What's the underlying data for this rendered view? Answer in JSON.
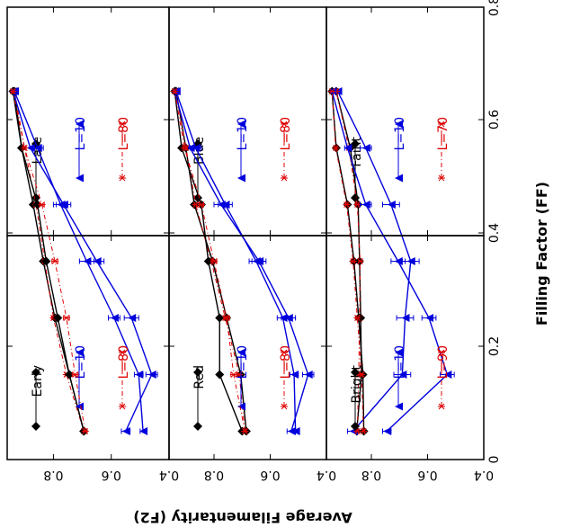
{
  "figure": {
    "xlabel": "Filling Factor (FF)",
    "ylabel": "Average Filamentarity (F2)",
    "xticks": [
      "0",
      "0.2",
      "0.4",
      "0.6",
      "0.8"
    ],
    "yticks": [
      "0.4",
      "0.6",
      "0.8"
    ]
  },
  "colors": {
    "black": "#000000",
    "blue": "#0000dd",
    "red": "#dd0000"
  },
  "chart_data": [
    {
      "type": "line",
      "panel": "Faint",
      "xlim": [
        0,
        0.8
      ],
      "ylim": [
        0.4,
        0.96
      ],
      "series": [
        {
          "name": "Faint",
          "marker": "diamond",
          "color": "#000000",
          "x": [
            0.05,
            0.15,
            0.25,
            0.35,
            0.45,
            0.55,
            0.65
          ],
          "y": [
            0.852,
            0.835,
            0.838,
            0.842,
            0.847,
            0.875,
            0.925
          ],
          "err": [
            0.003,
            0.003,
            0.003,
            0.004,
            0.004,
            0.005,
            0.004
          ]
        },
        {
          "name": "L=10",
          "marker": "triangle",
          "color": "#0000dd",
          "x": [
            0.05,
            0.15,
            0.25,
            0.35,
            0.45,
            0.55,
            0.65
          ],
          "y": [
            0.865,
            0.69,
            0.68,
            0.66,
            0.73,
            0.82,
            0.92
          ],
          "err": [
            0.02,
            0.03,
            0.03,
            0.03,
            0.03,
            0.02,
            0.01
          ]
        },
        {
          "name": "L=70",
          "marker": "asterisk",
          "color": "#dd0000",
          "x": [
            0.05,
            0.15,
            0.25,
            0.35,
            0.45,
            0.55,
            0.65
          ],
          "y": [
            0.85,
            0.845,
            0.842,
            0.84,
            0.85,
            0.88,
            0.925
          ],
          "err": [
            0.004,
            0.005,
            0.005,
            0.005,
            0.005,
            0.004,
            0.003
          ]
        }
      ]
    },
    {
      "type": "line",
      "panel": "Bright",
      "xlim": [
        0,
        0.8
      ],
      "ylim": [
        0.4,
        0.96
      ],
      "series": [
        {
          "name": "Bright",
          "marker": "diamond",
          "color": "#000000",
          "x": [
            0.05,
            0.15,
            0.25,
            0.35,
            0.45,
            0.55,
            0.65
          ],
          "y": [
            0.827,
            0.83,
            0.845,
            0.862,
            0.885,
            0.925,
            0.94
          ],
          "err": [
            0.004,
            0.004,
            0.004,
            0.004,
            0.004,
            0.003,
            0.002
          ]
        },
        {
          "name": "L=10",
          "marker": "triangle",
          "color": "#0000dd",
          "x": [
            0.05,
            0.15,
            0.25,
            0.35,
            0.45,
            0.55,
            0.65
          ],
          "y": [
            0.745,
            0.53,
            0.595,
            0.705,
            0.82,
            0.885,
            0.94
          ],
          "err": [
            0.015,
            0.025,
            0.025,
            0.025,
            0.02,
            0.01,
            0.003
          ]
        },
        {
          "name": "L=90",
          "marker": "asterisk",
          "color": "#dd0000",
          "x": [
            0.05,
            0.15,
            0.25,
            0.35,
            0.45,
            0.55,
            0.65
          ],
          "y": [
            0.828,
            0.835,
            0.85,
            0.865,
            0.888,
            0.927,
            0.94
          ],
          "err": [
            0.004,
            0.005,
            0.005,
            0.005,
            0.004,
            0.003,
            0.002
          ]
        }
      ]
    },
    {
      "type": "line",
      "panel": "Blue",
      "xlim": [
        0,
        0.8
      ],
      "ylim": [
        0.4,
        0.96
      ],
      "series": [
        {
          "name": "Blue",
          "marker": "diamond",
          "color": "#000000",
          "x": [
            0.05,
            0.15,
            0.25,
            0.35,
            0.45,
            0.55,
            0.65
          ],
          "y": [
            0.685,
            0.705,
            0.755,
            0.805,
            0.87,
            0.9,
            0.935
          ],
          "err": [
            0.004,
            0.004,
            0.004,
            0.004,
            0.004,
            0.003,
            0.003
          ]
        },
        {
          "name": "L=10",
          "marker": "triangle",
          "color": "#0000dd",
          "x": [
            0.05,
            0.15,
            0.25,
            0.35,
            0.45,
            0.55,
            0.65
          ],
          "y": [
            0.51,
            0.515,
            0.555,
            0.65,
            0.76,
            0.865,
            0.935
          ],
          "err": [
            0.01,
            0.015,
            0.02,
            0.025,
            0.025,
            0.02,
            0.005
          ]
        },
        {
          "name": "L=80",
          "marker": "asterisk",
          "color": "#dd0000",
          "x": [
            0.05,
            0.15,
            0.25,
            0.35,
            0.45,
            0.55,
            0.65
          ],
          "y": [
            0.69,
            0.71,
            0.76,
            0.81,
            0.865,
            0.9,
            0.935
          ],
          "err": [
            0.004,
            0.005,
            0.005,
            0.005,
            0.005,
            0.004,
            0.003
          ]
        }
      ]
    },
    {
      "type": "line",
      "panel": "Red",
      "xlim": [
        0,
        0.8
      ],
      "ylim": [
        0.4,
        0.96
      ],
      "series": [
        {
          "name": "Red",
          "marker": "diamond",
          "color": "#000000",
          "x": [
            0.05,
            0.15,
            0.25,
            0.35,
            0.45,
            0.55,
            0.65
          ],
          "y": [
            0.7,
            0.78,
            0.78,
            0.82,
            0.845,
            0.915,
            0.94
          ],
          "err": [
            0.005,
            0.005,
            0.005,
            0.005,
            0.005,
            0.004,
            0.003
          ]
        },
        {
          "name": "L=10",
          "marker": "triangle",
          "color": "#0000dd",
          "x": [
            0.05,
            0.15,
            0.25,
            0.35,
            0.45,
            0.55,
            0.65
          ],
          "y": [
            0.525,
            0.465,
            0.535,
            0.64,
            0.775,
            0.885,
            0.94
          ],
          "err": [
            0.015,
            0.02,
            0.025,
            0.025,
            0.025,
            0.015,
            0.004
          ]
        },
        {
          "name": "L=80",
          "marker": "asterisk",
          "color": "#dd0000",
          "x": [
            0.05,
            0.15,
            0.25,
            0.35,
            0.45,
            0.55,
            0.65
          ],
          "y": [
            0.69,
            0.73,
            0.755,
            0.8,
            0.845,
            0.905,
            0.94
          ],
          "err": [
            0.005,
            0.01,
            0.01,
            0.01,
            0.008,
            0.005,
            0.003
          ]
        }
      ]
    },
    {
      "type": "line",
      "panel": "Late",
      "xlim": [
        0,
        0.8
      ],
      "ylim": [
        0.4,
        0.96
      ],
      "series": [
        {
          "name": "Late",
          "marker": "diamond",
          "color": "#000000",
          "x": [
            0.05,
            0.15,
            0.25,
            0.35,
            0.45,
            0.55,
            0.65
          ],
          "y": [
            0.695,
            0.745,
            0.795,
            0.835,
            0.87,
            0.91,
            0.935
          ],
          "err": [
            0.004,
            0.004,
            0.004,
            0.004,
            0.004,
            0.003,
            0.003
          ]
        },
        {
          "name": "L=10",
          "marker": "triangle",
          "color": "#0000dd",
          "x": [
            0.05,
            0.15,
            0.25,
            0.35,
            0.45,
            0.55,
            0.65
          ],
          "y": [
            0.49,
            0.505,
            0.59,
            0.685,
            0.775,
            0.855,
            0.935
          ],
          "err": [
            0.01,
            0.015,
            0.02,
            0.025,
            0.025,
            0.02,
            0.005
          ]
        },
        {
          "name": "L=80",
          "marker": "asterisk",
          "color": "#dd0000",
          "x": [
            0.05,
            0.15,
            0.25,
            0.35,
            0.45,
            0.55,
            0.65
          ],
          "y": [
            0.695,
            0.755,
            0.8,
            0.83,
            0.86,
            0.9,
            0.935
          ],
          "err": [
            0.004,
            0.005,
            0.006,
            0.006,
            0.006,
            0.004,
            0.003
          ]
        }
      ]
    },
    {
      "type": "line",
      "panel": "Early",
      "xlim": [
        0,
        0.8
      ],
      "ylim": [
        0.4,
        0.96
      ],
      "series": [
        {
          "name": "Early",
          "marker": "diamond",
          "color": "#000000",
          "x": [
            0.05,
            0.15,
            0.25,
            0.35,
            0.45,
            0.55,
            0.65
          ],
          "y": [
            0.695,
            0.745,
            0.785,
            0.825,
            0.855,
            0.91,
            0.94
          ],
          "err": [
            0.005,
            0.005,
            0.005,
            0.005,
            0.005,
            0.004,
            0.003
          ]
        },
        {
          "name": "L=10",
          "marker": "triangle",
          "color": "#0000dd",
          "x": [
            0.05,
            0.15,
            0.25,
            0.35,
            0.45,
            0.55,
            0.65
          ],
          "y": [
            0.55,
            0.46,
            0.53,
            0.65,
            0.765,
            0.88,
            0.94
          ],
          "err": [
            0.015,
            0.02,
            0.025,
            0.025,
            0.025,
            0.015,
            0.004
          ]
        },
        {
          "name": "L=80",
          "marker": "asterisk",
          "color": "#dd0000",
          "x": [
            0.05,
            0.15,
            0.25,
            0.35,
            0.45,
            0.55,
            0.65
          ],
          "y": [
            0.69,
            0.725,
            0.755,
            0.795,
            0.84,
            0.9,
            0.94
          ],
          "err": [
            0.006,
            0.01,
            0.01,
            0.01,
            0.008,
            0.005,
            0.003
          ]
        }
      ]
    }
  ]
}
